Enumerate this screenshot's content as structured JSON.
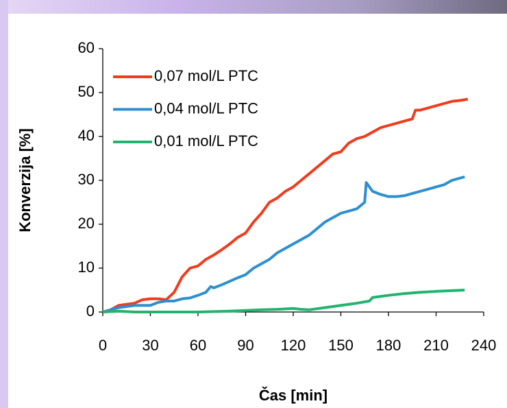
{
  "chart_data": {
    "type": "line",
    "xlabel": "Čas [min]",
    "ylabel": "Konverzija [%]",
    "xlim": [
      0,
      240
    ],
    "xticks": [
      0,
      30,
      60,
      90,
      120,
      150,
      180,
      210,
      240
    ],
    "ylim": [
      0,
      60
    ],
    "yticks": [
      0,
      10,
      20,
      30,
      40,
      50,
      60
    ],
    "grid": false,
    "legend": "upper left",
    "series": [
      {
        "name": "0,07 mol/L PTC",
        "color": "#f03c1e",
        "x": [
          0,
          5,
          10,
          20,
          25,
          30,
          35,
          40,
          45,
          50,
          55,
          60,
          65,
          70,
          75,
          80,
          85,
          90,
          95,
          100,
          105,
          110,
          115,
          120,
          125,
          130,
          135,
          140,
          145,
          150,
          155,
          160,
          165,
          170,
          175,
          180,
          185,
          190,
          195,
          197,
          200,
          205,
          210,
          215,
          220,
          225,
          230
        ],
        "values": [
          0,
          0.5,
          1.5,
          2,
          2.8,
          3,
          3,
          2.8,
          4.5,
          8,
          10,
          10.5,
          12,
          13,
          14.2,
          15.5,
          17,
          18,
          20.5,
          22.5,
          25,
          26,
          27.5,
          28.5,
          30,
          31.5,
          33,
          34.5,
          36,
          36.5,
          38.5,
          39.5,
          40,
          41,
          42,
          42.5,
          43,
          43.5,
          44,
          46,
          46,
          46.5,
          47,
          47.5,
          48,
          48.2,
          48.5
        ]
      },
      {
        "name": "0,04 mol/L PTC",
        "color": "#2e8fd0",
        "x": [
          0,
          10,
          20,
          30,
          35,
          40,
          45,
          50,
          55,
          60,
          65,
          68,
          70,
          75,
          80,
          85,
          90,
          95,
          100,
          105,
          110,
          115,
          120,
          125,
          130,
          135,
          140,
          145,
          150,
          155,
          160,
          165,
          166,
          170,
          175,
          180,
          185,
          190,
          195,
          200,
          205,
          210,
          215,
          220,
          228
        ],
        "values": [
          0,
          1,
          1.5,
          1.5,
          2.2,
          2.5,
          2.5,
          3,
          3.2,
          3.8,
          4.5,
          5.8,
          5.5,
          6.2,
          7,
          7.8,
          8.5,
          10,
          11,
          12,
          13.5,
          14.5,
          15.5,
          16.5,
          17.5,
          19,
          20.5,
          21.5,
          22.5,
          23,
          23.5,
          25,
          29.5,
          27.5,
          26.8,
          26.3,
          26.3,
          26.5,
          27,
          27.5,
          28,
          28.5,
          29,
          30,
          30.8
        ]
      },
      {
        "name": "0,01 mol/L PTC",
        "color": "#22b46e",
        "x": [
          0,
          10,
          20,
          40,
          60,
          80,
          100,
          110,
          120,
          125,
          130,
          140,
          150,
          160,
          168,
          170,
          180,
          190,
          200,
          210,
          228
        ],
        "values": [
          0,
          0.2,
          0,
          0,
          0,
          0.2,
          0.5,
          0.6,
          0.8,
          0.6,
          0.5,
          1,
          1.5,
          2,
          2.5,
          3.3,
          3.8,
          4.2,
          4.5,
          4.7,
          5
        ]
      }
    ]
  }
}
